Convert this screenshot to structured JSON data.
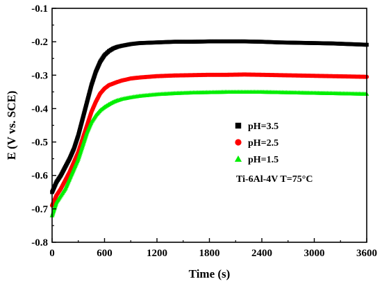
{
  "chart_data": {
    "type": "scatter",
    "xlabel": "Time (s)",
    "ylabel": "E (V vs. SCE)",
    "xlim": [
      0,
      3600
    ],
    "ylim": [
      -0.8,
      -0.1
    ],
    "x_ticks": [
      0,
      600,
      1200,
      1800,
      2400,
      3000,
      3600
    ],
    "x_tick_labels": [
      "0",
      "600",
      "1200",
      "1800",
      "2400",
      "3000",
      "3600"
    ],
    "y_ticks": [
      -0.8,
      -0.7,
      -0.6,
      -0.5,
      -0.4,
      -0.3,
      -0.2,
      -0.1
    ],
    "y_tick_labels": [
      "-0.8",
      "-0.7",
      "-0.6",
      "-0.5",
      "-0.4",
      "-0.3",
      "-0.2",
      "-0.1"
    ],
    "grid": false,
    "legend_position": "center-right",
    "annotation": "Ti-6Al-4V T=75°C",
    "series": [
      {
        "name": "pH=3.5",
        "color": "#000000",
        "marker": "square",
        "x": [
          0,
          50,
          100,
          150,
          200,
          250,
          300,
          350,
          400,
          450,
          500,
          550,
          600,
          650,
          700,
          750,
          800,
          900,
          1000,
          1200,
          1400,
          1600,
          1800,
          2000,
          2200,
          2400,
          2600,
          2800,
          3000,
          3200,
          3400,
          3600
        ],
        "y": [
          -0.65,
          -0.62,
          -0.6,
          -0.575,
          -0.55,
          -0.52,
          -0.48,
          -0.43,
          -0.38,
          -0.33,
          -0.29,
          -0.26,
          -0.24,
          -0.228,
          -0.22,
          -0.215,
          -0.212,
          -0.207,
          -0.204,
          -0.202,
          -0.2,
          -0.2,
          -0.199,
          -0.199,
          -0.199,
          -0.2,
          -0.202,
          -0.203,
          -0.204,
          -0.205,
          -0.207,
          -0.209
        ]
      },
      {
        "name": "pH=2.5",
        "color": "#ff0000",
        "marker": "circle",
        "x": [
          0,
          50,
          100,
          150,
          200,
          250,
          300,
          350,
          400,
          450,
          500,
          550,
          600,
          650,
          700,
          750,
          800,
          900,
          1000,
          1200,
          1400,
          1600,
          1800,
          2000,
          2200,
          2400,
          2600,
          2800,
          3000,
          3200,
          3400,
          3600
        ],
        "y": [
          -0.69,
          -0.66,
          -0.64,
          -0.615,
          -0.59,
          -0.56,
          -0.53,
          -0.49,
          -0.45,
          -0.41,
          -0.38,
          -0.355,
          -0.34,
          -0.33,
          -0.325,
          -0.32,
          -0.316,
          -0.31,
          -0.307,
          -0.303,
          -0.301,
          -0.3,
          -0.299,
          -0.299,
          -0.298,
          -0.299,
          -0.3,
          -0.301,
          -0.302,
          -0.303,
          -0.304,
          -0.305
        ]
      },
      {
        "name": "pH=1.5",
        "color": "#00ee00",
        "marker": "triangle",
        "x": [
          0,
          50,
          100,
          150,
          200,
          250,
          300,
          350,
          400,
          450,
          500,
          550,
          600,
          650,
          700,
          750,
          800,
          900,
          1000,
          1200,
          1400,
          1600,
          1800,
          2000,
          2200,
          2400,
          2600,
          2800,
          3000,
          3200,
          3400,
          3600
        ],
        "y": [
          -0.72,
          -0.68,
          -0.66,
          -0.64,
          -0.61,
          -0.58,
          -0.55,
          -0.51,
          -0.47,
          -0.44,
          -0.42,
          -0.405,
          -0.395,
          -0.387,
          -0.38,
          -0.375,
          -0.371,
          -0.366,
          -0.362,
          -0.357,
          -0.354,
          -0.352,
          -0.351,
          -0.35,
          -0.35,
          -0.35,
          -0.351,
          -0.352,
          -0.353,
          -0.354,
          -0.355,
          -0.356
        ]
      }
    ]
  }
}
